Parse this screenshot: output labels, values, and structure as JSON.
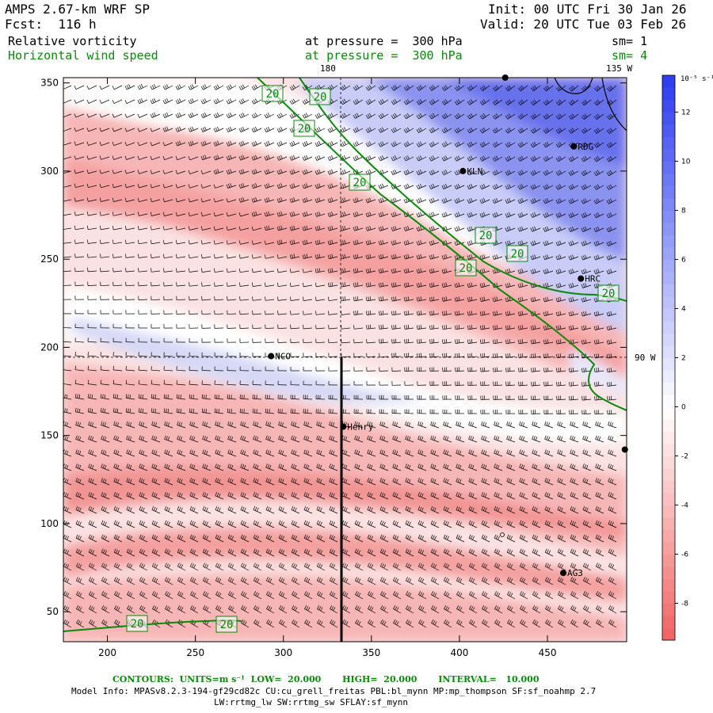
{
  "header": {
    "model": "AMPS 2.67-km WRF SP",
    "init": "Init: 00 UTC Fri 30 Jan 26",
    "forecast": "Fcst:  116 h",
    "valid": "Valid: 20 UTC Tue 03 Feb 26",
    "field1_name": "Relative vorticity",
    "field1_pressure": "at pressure =  300 hPa",
    "field1_sm": "sm= 1",
    "field2_name": "Horizontal wind speed",
    "field2_pressure": "at pressure =  300 hPa",
    "field2_sm": "sm= 4"
  },
  "map": {
    "x_ticks": [
      200,
      250,
      300,
      350,
      400,
      450
    ],
    "y_ticks": [
      50,
      100,
      150,
      200,
      250,
      300,
      350
    ],
    "x_range": [
      175,
      495
    ],
    "y_range": [
      33,
      353
    ],
    "meridian_labels": [
      "180",
      "135 W"
    ],
    "parallel_label": "90 W",
    "contour_label": "20",
    "stations": [
      {
        "name": "RDG",
        "x": 465,
        "y": 314
      },
      {
        "name": "KLN",
        "x": 402,
        "y": 300
      },
      {
        "name": "HRC",
        "x": 469,
        "y": 239
      },
      {
        "name": "NCO",
        "x": 293,
        "y": 195
      },
      {
        "name": "Henry",
        "x": 334,
        "y": 155
      },
      {
        "name": "AG3",
        "x": 459,
        "y": 72
      },
      {
        "name": "",
        "x": 494,
        "y": 142
      },
      {
        "name": "",
        "x": 426,
        "y": 353
      }
    ]
  },
  "colorbar": {
    "units": "10⁻⁵ s⁻¹",
    "ticks": [
      12,
      10,
      8,
      6,
      4,
      2,
      0,
      -2,
      -4,
      -6,
      -8
    ],
    "range": [
      -9.5,
      13.5
    ],
    "colors": {
      "max": "#2a3af0",
      "zero": "#ffffff",
      "min": "#f06262"
    }
  },
  "footer": {
    "contours": "CONTOURS:  UNITS=m s⁻¹  LOW=  20.000       HIGH=  20.000       INTERVAL=   10.000",
    "model_info": "Model Info: MPASv8.2.3-194-gf29cd82c CU:cu_grell_freitas PBL:bl_mynn MP:mp_thompson SF:sf_noahmp 2.7",
    "model_info2": "LW:rrtmg_lw SW:rrtmg_sw SFLAY:sf_mynn"
  }
}
